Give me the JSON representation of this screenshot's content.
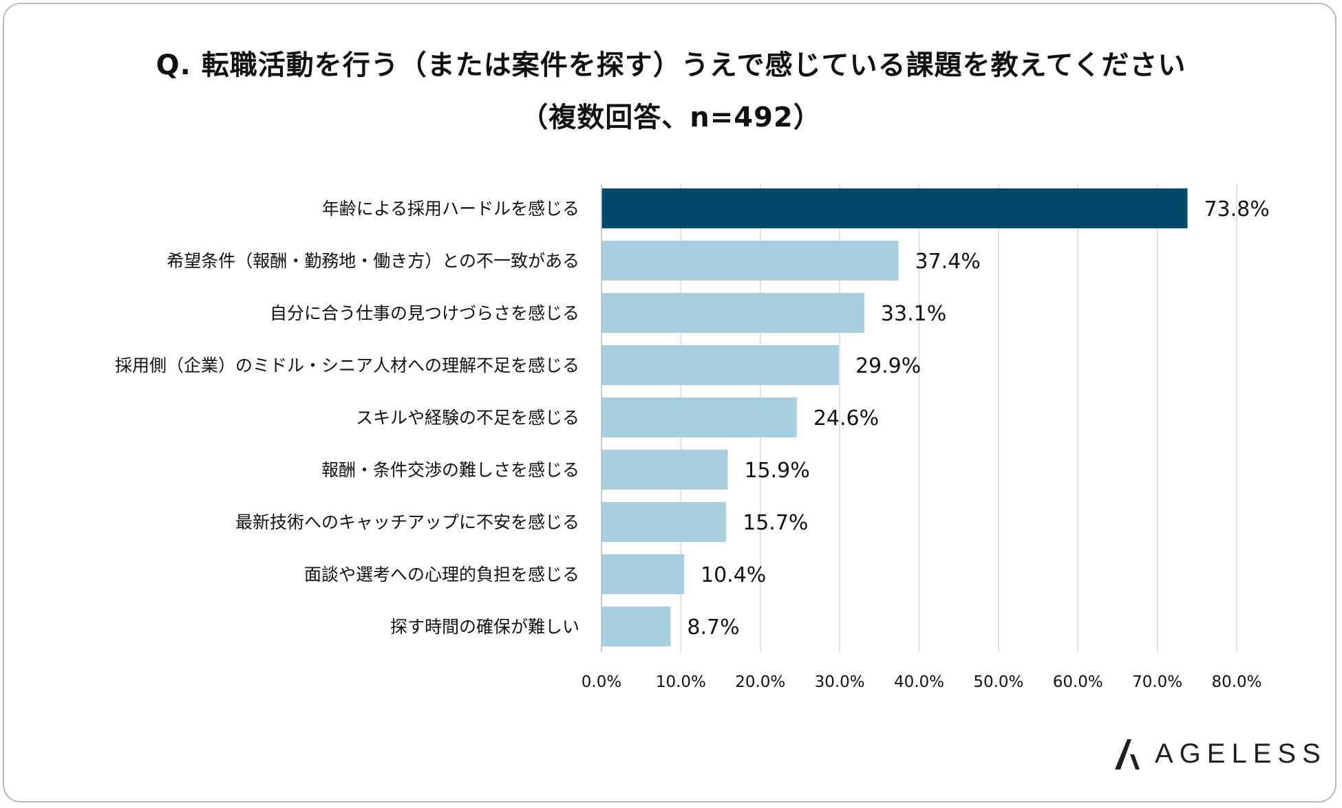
{
  "title": {
    "line1": "Q. 転職活動を行う（または案件を探す）うえで感じている課題を教えてください",
    "line2": "（複数回答、n=492）"
  },
  "colors": {
    "highlight_bar": "#00486b",
    "bar": "#a7cfde",
    "grid": "#d9d9d9",
    "text": "#111111"
  },
  "chart_data": {
    "type": "bar",
    "orientation": "horizontal",
    "categories": [
      "年齢による採用ハードルを感じる",
      "希望条件（報酬・勤務地・働き方）との不一致がある",
      "自分に合う仕事の見つけづらさを感じる",
      "採用側（企業）のミドル・シニア人材への理解不足を感じる",
      "スキルや経験の不足を感じる",
      "報酬・条件交渉の難しさを感じる",
      "最新技術へのキャッチアップに不安を感じる",
      "面談や選考への心理的負担を感じる",
      "探す時間の確保が難しい"
    ],
    "values": [
      73.8,
      37.4,
      33.1,
      29.9,
      24.6,
      15.9,
      15.7,
      10.4,
      8.7
    ],
    "value_labels": [
      "73.8%",
      "37.4%",
      "33.1%",
      "29.9%",
      "24.6%",
      "15.9%",
      "15.7%",
      "10.4%",
      "8.7%"
    ],
    "highlight_index": 0,
    "xlim": [
      0,
      80
    ],
    "xticks": [
      0,
      10,
      20,
      30,
      40,
      50,
      60,
      70,
      80
    ],
    "xtick_labels": [
      "0.0%",
      "10.0%",
      "20.0%",
      "30.0%",
      "40.0%",
      "50.0%",
      "60.0%",
      "70.0%",
      "80.0%"
    ],
    "grid": true,
    "legend": "none"
  },
  "logo": {
    "text": "AGELESS"
  }
}
